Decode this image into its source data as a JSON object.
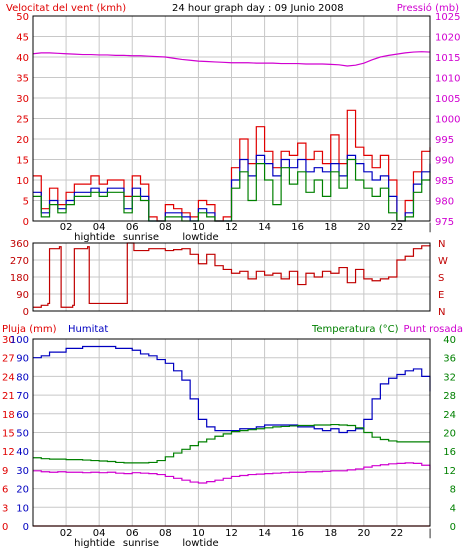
{
  "header": {
    "wind_label": "Velocitat del vent (kmh)",
    "title": "24 hour graph day : 09 Junio 2008",
    "pressure_label": "Pressió (mb)"
  },
  "bottom_header": {
    "rain_label": "Pluja (mm)",
    "humidity_label": "Humitat",
    "temperature_label": "Temperatura (°C)",
    "dewpoint_label": "Punt rosada"
  },
  "colors": {
    "wind_gust": "#e00000",
    "wind_avg": "#0000c0",
    "wind_speed": "#008000",
    "pressure": "#d000d0",
    "direction": "#c00000",
    "humidity": "#0000c0",
    "temperature": "#008000",
    "dewpoint": "#d000d0",
    "rain": "#d00000",
    "grid": "#c8c8c8",
    "axis": "#000000"
  },
  "chart_data": [
    {
      "type": "line",
      "id": "wind_pressure",
      "title": "24 hour graph day : 09 Junio 2008",
      "xlabel": "",
      "x_ticks": [
        "02",
        "04",
        "06",
        "08",
        "10",
        "12",
        "14",
        "16",
        "18",
        "20",
        "22",
        "|"
      ],
      "x_events": [
        {
          "label": "hightide",
          "hour": 3.0
        },
        {
          "label": "sunrise",
          "hour": 5.8
        },
        {
          "label": "lowtide",
          "hour": 9.4
        }
      ],
      "ylabel": "Velocitat del vent (kmh)",
      "ylim": [
        0,
        50
      ],
      "y_ticks": [
        0,
        5,
        10,
        15,
        20,
        25,
        30,
        35,
        40,
        45,
        50
      ],
      "y2label": "Pressió (mb)",
      "y2lim": [
        975,
        1025
      ],
      "y2_ticks": [
        975,
        980,
        985,
        990,
        995,
        1000,
        1005,
        1010,
        1015,
        1020,
        1025
      ],
      "grid": true,
      "x_hours": [
        0,
        0.5,
        1,
        1.5,
        2,
        2.5,
        3,
        3.5,
        4,
        4.5,
        5,
        5.5,
        6,
        6.5,
        7,
        7.5,
        8,
        8.5,
        9,
        9.5,
        10,
        10.5,
        11,
        11.5,
        12,
        12.5,
        13,
        13.5,
        14,
        14.5,
        15,
        15.5,
        16,
        16.5,
        17,
        17.5,
        18,
        18.5,
        19,
        19.5,
        20,
        20.5,
        21,
        21.5,
        22,
        22.5,
        23,
        23.5,
        24
      ],
      "series": [
        {
          "key": "gust",
          "axis": "left",
          "color_key": "wind_gust",
          "values": [
            11,
            3,
            8,
            4,
            7,
            9,
            9,
            11,
            9,
            10,
            10,
            6,
            11,
            9,
            1,
            0,
            4,
            3,
            2,
            1,
            5,
            4,
            0,
            1,
            13,
            20,
            14,
            23,
            17,
            13,
            17,
            16,
            19,
            15,
            17,
            14,
            21,
            14,
            27,
            18,
            16,
            13,
            16,
            10,
            0,
            5,
            12,
            17,
            18
          ]
        },
        {
          "key": "average",
          "axis": "left",
          "color_key": "wind_avg",
          "values": [
            7,
            2,
            5,
            3,
            5,
            7,
            7,
            8,
            7,
            8,
            8,
            3,
            8,
            6,
            0,
            0,
            2,
            2,
            1,
            0,
            3,
            2,
            0,
            0,
            10,
            15,
            11,
            16,
            14,
            11,
            15,
            13,
            15,
            12,
            13,
            12,
            14,
            11,
            16,
            14,
            12,
            10,
            11,
            6,
            0,
            2,
            9,
            12,
            14
          ]
        },
        {
          "key": "speed",
          "axis": "left",
          "color_key": "wind_speed",
          "values": [
            6,
            1,
            4,
            2,
            4,
            6,
            6,
            7,
            6,
            7,
            7,
            2,
            6,
            5,
            0,
            0,
            1,
            1,
            0,
            0,
            2,
            1,
            0,
            0,
            8,
            12,
            5,
            14,
            10,
            4,
            13,
            9,
            12,
            7,
            10,
            6,
            12,
            8,
            15,
            10,
            8,
            6,
            8,
            2,
            0,
            1,
            7,
            10,
            12
          ]
        },
        {
          "key": "pressure",
          "axis": "right",
          "color_key": "pressure",
          "values": [
            1015.8,
            1016.0,
            1016.0,
            1015.9,
            1015.8,
            1015.7,
            1015.6,
            1015.6,
            1015.5,
            1015.5,
            1015.4,
            1015.4,
            1015.3,
            1015.3,
            1015.2,
            1015.1,
            1015.0,
            1014.7,
            1014.4,
            1014.2,
            1014.0,
            1013.9,
            1013.8,
            1013.7,
            1013.6,
            1013.6,
            1013.6,
            1013.5,
            1013.5,
            1013.5,
            1013.4,
            1013.4,
            1013.4,
            1013.3,
            1013.3,
            1013.3,
            1013.2,
            1013.1,
            1012.8,
            1013.0,
            1013.5,
            1014.3,
            1015.0,
            1015.4,
            1015.7,
            1016.0,
            1016.2,
            1016.3,
            1016.2
          ]
        }
      ]
    },
    {
      "type": "line",
      "id": "wind_direction",
      "title": "",
      "xlabel": "",
      "ylabel": "",
      "ylim": [
        0,
        360
      ],
      "y_ticks": [
        0,
        90,
        180,
        270,
        360
      ],
      "y2_labels": [
        "N",
        "W",
        "S",
        "E",
        "N"
      ],
      "grid": true,
      "series": [
        {
          "key": "direction",
          "color_key": "direction",
          "x_hours": [
            0,
            0.5,
            0.9,
            1.0,
            1.6,
            1.7,
            2.4,
            2.5,
            3.3,
            3.4,
            5.6,
            5.7,
            6.0,
            6.1,
            7.0,
            7.2,
            8.0,
            8.5,
            9.0,
            9.5,
            10.0,
            10.5,
            11.0,
            11.5,
            12.0,
            12.5,
            13.0,
            13.5,
            14.0,
            14.5,
            15.0,
            15.5,
            16.0,
            16.5,
            17.0,
            17.5,
            18.0,
            18.5,
            19.0,
            19.5,
            20.0,
            20.5,
            21.0,
            21.5,
            22.0,
            22.5,
            23.0,
            23.5,
            24.0
          ],
          "values": [
            20,
            30,
            40,
            330,
            340,
            20,
            30,
            330,
            340,
            40,
            40,
            370,
            360,
            320,
            330,
            330,
            320,
            325,
            330,
            300,
            250,
            300,
            240,
            220,
            200,
            210,
            170,
            210,
            190,
            200,
            170,
            210,
            140,
            200,
            180,
            210,
            200,
            230,
            150,
            220,
            170,
            160,
            170,
            180,
            270,
            290,
            330,
            345,
            350
          ]
        }
      ]
    },
    {
      "type": "line",
      "id": "humidity_temperature",
      "title": "",
      "xlabel": "",
      "x_ticks": [
        "02",
        "04",
        "06",
        "08",
        "10",
        "12",
        "14",
        "16",
        "18",
        "20",
        "22",
        "|"
      ],
      "x_events": [
        {
          "label": "hightide",
          "hour": 3.0
        },
        {
          "label": "sunrise",
          "hour": 5.8
        },
        {
          "label": "lowtide",
          "hour": 9.4
        }
      ],
      "ylabel": "Pluja (mm)",
      "ylim": [
        0,
        100
      ],
      "y_ticks_rain": [
        0,
        3,
        6,
        9,
        12,
        15,
        18,
        21,
        24,
        27,
        30
      ],
      "y_ticks_humidity": [
        0,
        10,
        20,
        30,
        40,
        50,
        60,
        70,
        80,
        90,
        100
      ],
      "y2label": "Temperatura (°C)",
      "y2lim": [
        0,
        40
      ],
      "y2_ticks": [
        0,
        4,
        8,
        12,
        16,
        20,
        24,
        28,
        32,
        36,
        40
      ],
      "grid": true,
      "x_hours": [
        0,
        0.5,
        1,
        1.5,
        2,
        2.5,
        3,
        3.5,
        4,
        4.5,
        5,
        5.5,
        6,
        6.5,
        7,
        7.5,
        8,
        8.5,
        9,
        9.5,
        10,
        10.5,
        11,
        11.5,
        12,
        12.5,
        13,
        13.5,
        14,
        14.5,
        15,
        15.5,
        16,
        16.5,
        17,
        17.5,
        18,
        18.5,
        19,
        19.5,
        20,
        20.5,
        21,
        21.5,
        22,
        22.5,
        23,
        23.5,
        24
      ],
      "series": [
        {
          "key": "humidity",
          "axis": "left",
          "color_key": "humidity",
          "values": [
            90,
            91,
            93,
            93,
            95,
            95,
            96,
            96,
            96,
            96,
            95,
            95,
            94,
            92,
            91,
            89,
            87,
            83,
            78,
            68,
            57,
            53,
            51,
            51,
            51,
            52,
            52,
            53,
            54,
            54,
            54,
            54,
            53,
            53,
            52,
            51,
            52,
            50,
            51,
            52,
            57,
            68,
            76,
            79,
            81,
            83,
            84,
            80,
            72
          ]
        },
        {
          "key": "temperature",
          "axis": "right",
          "color_key": "temperature",
          "values": [
            14.6,
            14.4,
            14.3,
            14.3,
            14.2,
            14.2,
            14.1,
            14.0,
            13.9,
            13.8,
            13.6,
            13.5,
            13.5,
            13.5,
            13.6,
            14.0,
            14.8,
            15.6,
            16.4,
            17.2,
            18.0,
            18.6,
            19.2,
            19.7,
            20.2,
            20.4,
            20.6,
            20.8,
            21.0,
            21.2,
            21.3,
            21.4,
            21.5,
            21.5,
            21.6,
            21.6,
            21.7,
            21.6,
            21.5,
            21.0,
            20.0,
            19.0,
            18.5,
            18.2,
            18.0,
            18.0,
            18.0,
            18.0,
            18.0
          ]
        },
        {
          "key": "dewpoint",
          "axis": "right",
          "color_key": "dewpoint",
          "values": [
            11.8,
            11.6,
            11.5,
            11.6,
            11.5,
            11.5,
            11.4,
            11.5,
            11.4,
            11.5,
            11.3,
            11.2,
            11.4,
            11.3,
            11.2,
            11.0,
            10.6,
            10.2,
            9.8,
            9.4,
            9.2,
            9.5,
            9.8,
            10.2,
            10.6,
            10.8,
            11.0,
            11.1,
            11.2,
            11.3,
            11.4,
            11.5,
            11.5,
            11.6,
            11.6,
            11.7,
            11.8,
            11.8,
            12.0,
            12.2,
            12.6,
            12.9,
            13.1,
            13.3,
            13.4,
            13.5,
            13.4,
            13.0,
            12.0
          ]
        },
        {
          "key": "rain",
          "axis": "rain",
          "color_key": "rain",
          "values": [
            0,
            0,
            0,
            0,
            0,
            0,
            0,
            0,
            0,
            0,
            0,
            0,
            0,
            0,
            0,
            0,
            0,
            0,
            0,
            0,
            0,
            0,
            0,
            0,
            0,
            0,
            0,
            0,
            0,
            0,
            0,
            0,
            0,
            0,
            0,
            0,
            0,
            0,
            0,
            0,
            0,
            0,
            0,
            0,
            0,
            0,
            0,
            0,
            0
          ]
        }
      ]
    }
  ]
}
